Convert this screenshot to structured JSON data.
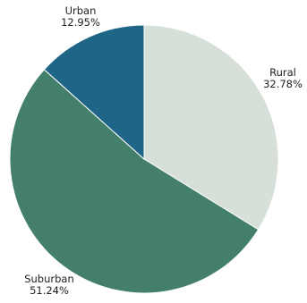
{
  "chart_data": {
    "type": "pie",
    "slices": [
      {
        "name": "Rural",
        "percent_label": "32.78%",
        "value": 32.78,
        "color": "#d6dfd8"
      },
      {
        "name": "Suburban",
        "percent_label": "51.24%",
        "value": 51.24,
        "color": "#437f6b"
      },
      {
        "name": "Urban",
        "percent_label": "12.95%",
        "value": 12.95,
        "color": "#1f6587"
      }
    ],
    "start_angle_deg": 0,
    "direction": "clockwise",
    "legend": "none",
    "title": ""
  }
}
